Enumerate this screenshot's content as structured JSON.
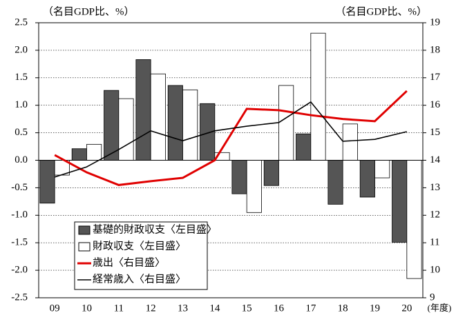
{
  "chart_data": {
    "type": "bar",
    "y_label": "（名目GDP比、%）",
    "y2_label": "（名目GDP比、%）",
    "x_unit": "(年度)",
    "categories": [
      "09",
      "10",
      "11",
      "12",
      "13",
      "14",
      "15",
      "16",
      "17",
      "18",
      "19",
      "20"
    ],
    "series": [
      {
        "name": "基礎的財政収支〈左目盛〉",
        "type": "bar",
        "color": "#555555",
        "values": [
          -0.78,
          0.21,
          1.27,
          1.83,
          1.36,
          1.03,
          -0.61,
          -0.46,
          0.48,
          -0.8,
          -0.67,
          -1.49
        ]
      },
      {
        "name": "財政収支〈左目盛〉",
        "type": "bar",
        "color": "#ffffff",
        "values": [
          -0.27,
          0.29,
          1.12,
          1.57,
          1.28,
          0.14,
          -0.95,
          1.36,
          2.31,
          0.66,
          -0.32,
          -2.15
        ]
      },
      {
        "name": "歳出〈右目盛〉",
        "type": "line",
        "axis": "y2",
        "color": "#e00000",
        "values": [
          14.19,
          13.56,
          13.1,
          13.24,
          13.36,
          14.0,
          15.87,
          15.82,
          15.64,
          15.5,
          15.42,
          16.52
        ]
      },
      {
        "name": "経常歳入〈右目盛〉",
        "type": "line",
        "axis": "y2",
        "color": "#000000",
        "values": [
          13.39,
          13.76,
          14.39,
          15.07,
          14.71,
          15.07,
          15.24,
          15.37,
          16.12,
          14.69,
          14.76,
          15.04
        ]
      }
    ],
    "ylim": [
      -2.5,
      2.5
    ],
    "yticks": [
      2.5,
      {
        "value": 2,
        "label": "2.0"
      },
      1.5,
      {
        "value": 1,
        "label": "1.0"
      },
      0.5,
      {
        "value": 0,
        "label": "0.0"
      },
      -0.5,
      {
        "value": -1,
        "label": "-1.0"
      },
      -1.5,
      {
        "value": -2,
        "label": "-2.0"
      },
      -2.5
    ],
    "y2lim": [
      9,
      19
    ],
    "y2ticks": [
      9,
      10,
      11,
      12,
      13,
      14,
      15,
      16,
      17,
      18,
      19
    ],
    "grid": true,
    "legend": "lower-left"
  }
}
